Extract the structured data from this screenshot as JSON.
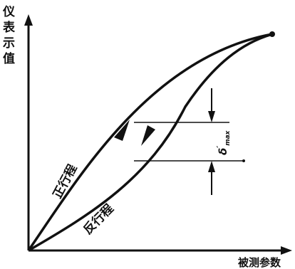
{
  "labels": {
    "y_axis": [
      "仪",
      "表",
      "示",
      "值"
    ],
    "x_axis": "被测参数",
    "forward_stroke": "正行程",
    "reverse_stroke": "反行程",
    "delta_symbol": "δ",
    "delta_subscript": "max",
    "delta_prime": "′"
  },
  "colors": {
    "ink": "#111111",
    "background": "#ffffff"
  }
}
